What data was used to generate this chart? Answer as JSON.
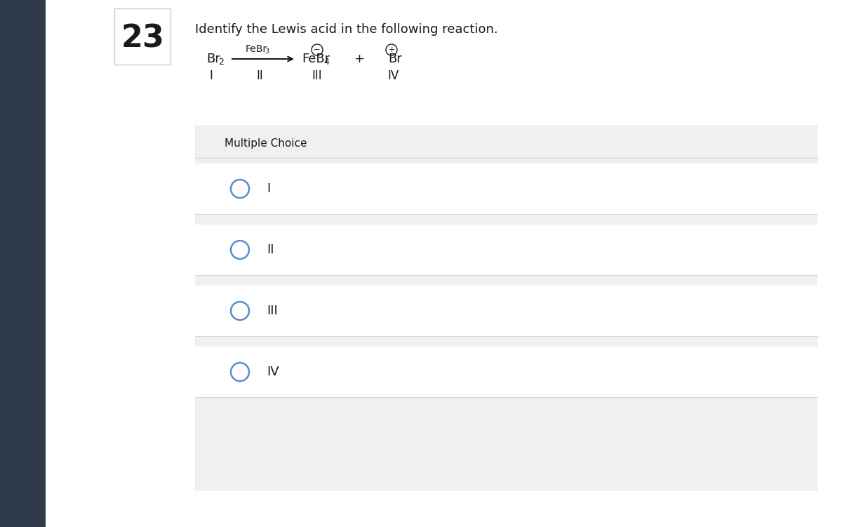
{
  "title": "Identify the Lewis acid in the following reaction.",
  "question_number": "23",
  "reaction_labels": [
    "I",
    "II",
    "III",
    "IV"
  ],
  "multiple_choice_label": "Multiple Choice",
  "choices": [
    "I",
    "II",
    "III",
    "IV"
  ],
  "sidebar_color": "#2e3a4a",
  "bg_main": "#ffffff",
  "bg_question_box": "#f0f0f0",
  "bg_choice": "#ffffff",
  "circle_color": "#5b8ec4",
  "text_color": "#1a1a1a",
  "number_box_border": "#cccccc"
}
